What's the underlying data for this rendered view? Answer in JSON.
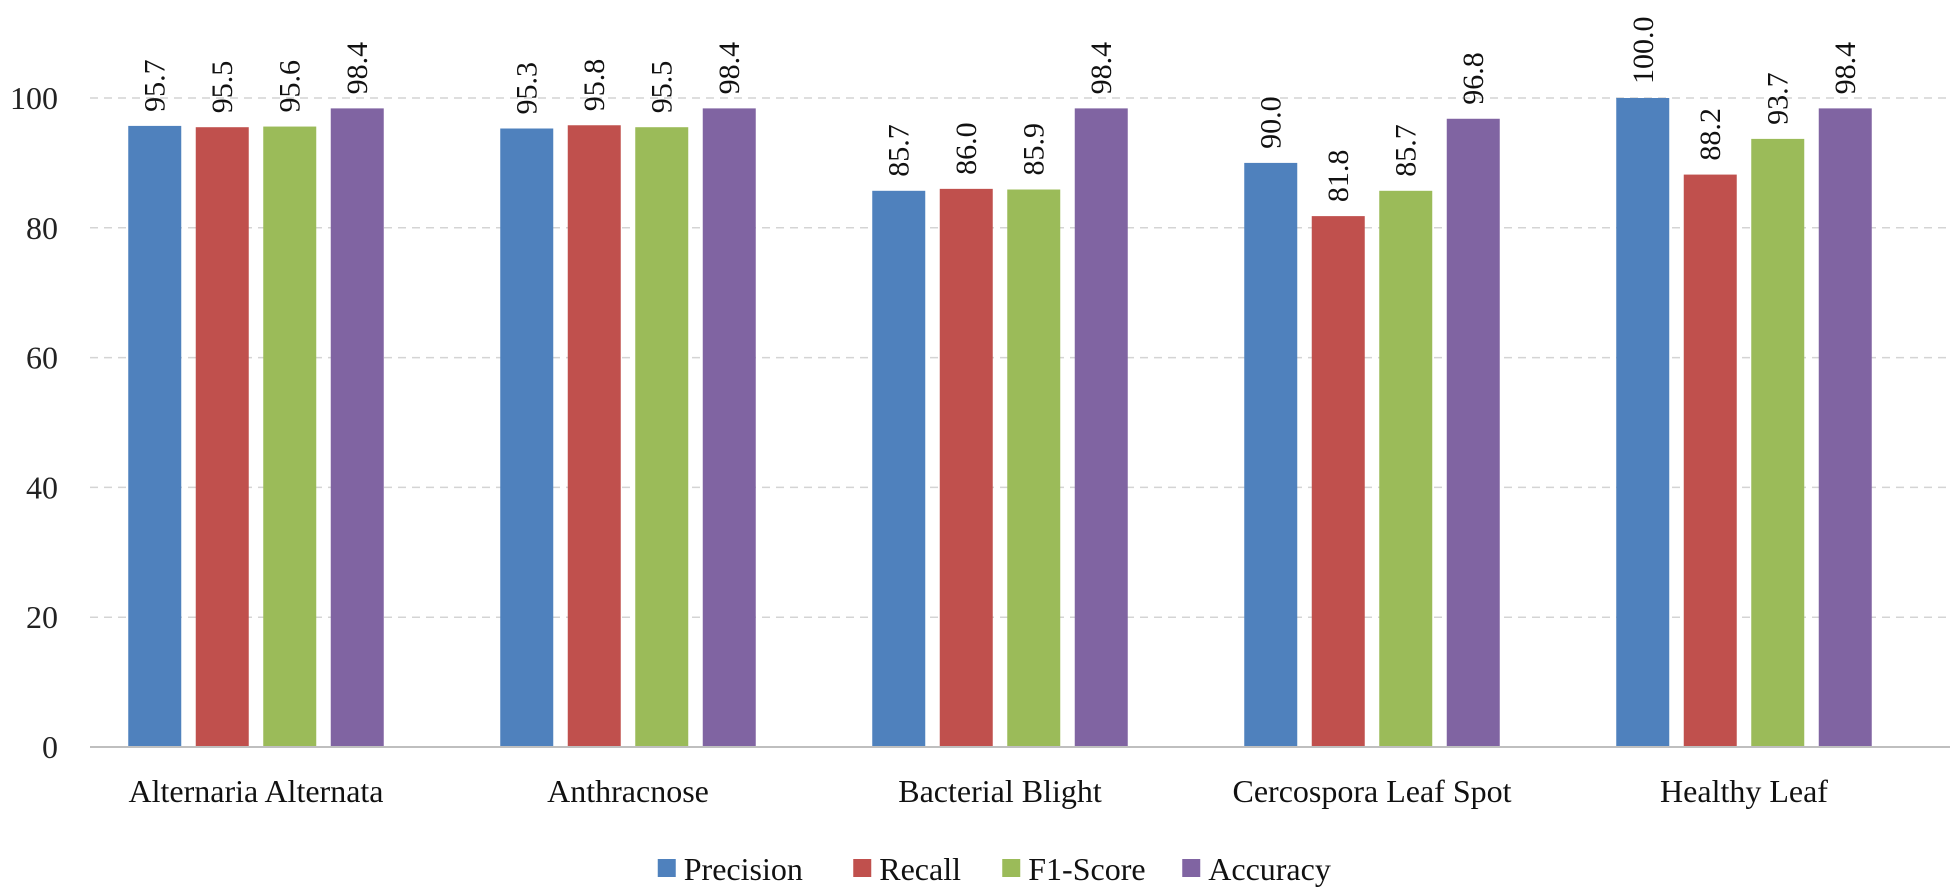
{
  "chart_data": {
    "type": "bar",
    "title": "",
    "xlabel": "",
    "ylabel": "",
    "ylim": [
      0,
      100
    ],
    "yticks": [
      0,
      20,
      40,
      60,
      80,
      100
    ],
    "grid": true,
    "legend_position": "bottom",
    "categories": [
      "Alternaria Alternata",
      "Anthracnose",
      "Bacterial Blight",
      "Cercospora Leaf Spot",
      "Healthy Leaf"
    ],
    "series": [
      {
        "name": "Precision",
        "color": "#4F81BD",
        "values": [
          95.7,
          95.3,
          85.7,
          90.0,
          100.0
        ]
      },
      {
        "name": "Recall",
        "color": "#C0504D",
        "values": [
          95.5,
          95.8,
          86.0,
          81.8,
          88.2
        ]
      },
      {
        "name": "F1-Score",
        "color": "#9BBB59",
        "values": [
          95.6,
          95.5,
          85.9,
          85.7,
          93.7
        ]
      },
      {
        "name": "Accuracy",
        "color": "#8064A2",
        "values": [
          98.4,
          98.4,
          98.4,
          96.8,
          98.4
        ]
      }
    ]
  }
}
